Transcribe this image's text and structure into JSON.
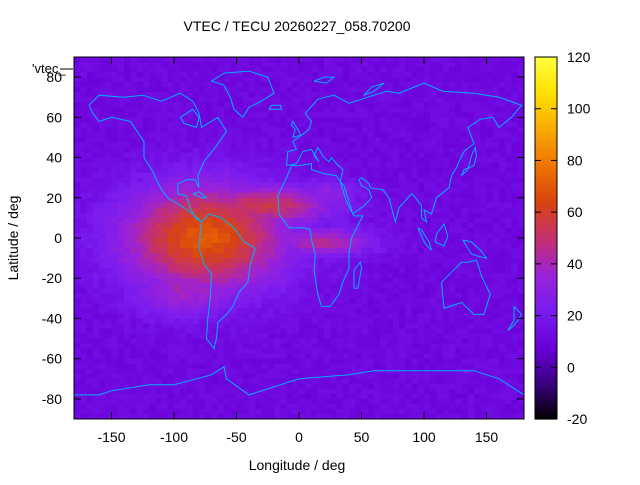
{
  "chart_data": {
    "type": "heatmap",
    "title": "VTEC / TECU 20260227_058.70200",
    "xlabel": "Longitude / deg",
    "ylabel": "Latitude / deg",
    "key_label": "'vtec_",
    "xlim": [
      -180,
      180
    ],
    "ylim": [
      -90,
      90
    ],
    "x_ticks": [
      -150,
      -100,
      -50,
      0,
      50,
      100,
      150
    ],
    "y_ticks": [
      -80,
      -60,
      -40,
      -20,
      0,
      20,
      40,
      60,
      80
    ],
    "colorbar": {
      "range": [
        -20,
        120
      ],
      "ticks": [
        -20,
        0,
        20,
        40,
        60,
        80,
        100,
        120
      ],
      "palette": [
        "#000000",
        "#3a0080",
        "#6a00d8",
        "#7a1cf0",
        "#9a22d8",
        "#c43070",
        "#d84410",
        "#ee7400",
        "#f8a800",
        "#ffe000",
        "#ffff40"
      ]
    },
    "background_value": 12,
    "features": [
      {
        "name": "equatorial-anomaly-core",
        "lon": -75,
        "lat": 0,
        "peak_vtec": 70,
        "lon_width": 65,
        "lat_width": 26
      },
      {
        "name": "equatorial-anomaly-north-crest",
        "lon": -30,
        "lat": 16,
        "peak_vtec": 55,
        "lon_width": 55,
        "lat_width": 10
      },
      {
        "name": "atlantic-tail",
        "lon": 20,
        "lat": -2,
        "peak_vtec": 45,
        "lon_width": 40,
        "lat_width": 7
      },
      {
        "name": "southern-extension",
        "lon": -90,
        "lat": -25,
        "peak_vtec": 40,
        "lon_width": 45,
        "lat_width": 14
      },
      {
        "name": "north-crest-tail",
        "lon": 20,
        "lat": 22,
        "peak_vtec": 32,
        "lon_width": 30,
        "lat_width": 7
      }
    ],
    "coastline_color": "#00b0ff"
  }
}
